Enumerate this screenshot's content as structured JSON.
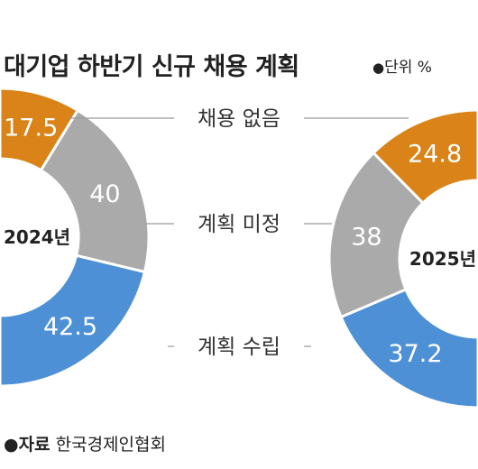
{
  "title": "대기업 하반기 신규 채용 계획",
  "unit": {
    "bullet": "●",
    "label": "단위 %"
  },
  "source": {
    "bullet": "●",
    "label": "자료",
    "text": "한국경제인협회"
  },
  "colors": {
    "none": "#d98318",
    "undecided": "#aaaaaa",
    "planned": "#4d90d5",
    "connector": "#999999"
  },
  "chart_data": [
    {
      "type": "pie",
      "center_label": "2024년",
      "categories": [
        "채용 없음",
        "계획 미정",
        "계획 수립"
      ],
      "values": [
        17.5,
        40,
        42.5
      ],
      "value_labels": [
        "17.5",
        "40",
        "42.5"
      ]
    },
    {
      "type": "pie",
      "center_label": "2025년",
      "categories": [
        "채용 없음",
        "계획 미정",
        "계획 수립"
      ],
      "values": [
        24.8,
        38,
        37.2
      ],
      "value_labels": [
        "24.8",
        "38",
        "37.2"
      ]
    }
  ]
}
